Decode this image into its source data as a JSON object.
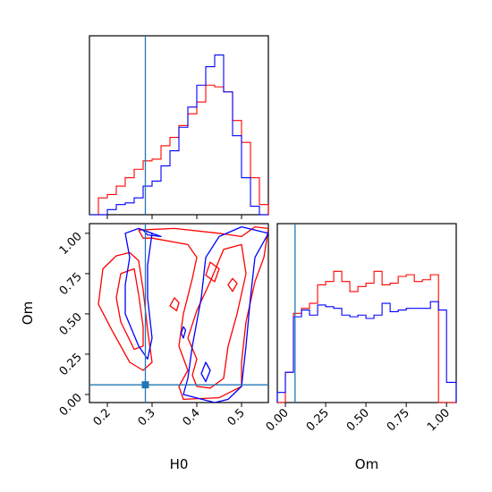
{
  "chart_data": [
    {
      "panel": "H0 marginal",
      "type": "histogram",
      "x_variable": "H0",
      "xlim": [
        0.16,
        0.56
      ],
      "y_ticks_shown": false,
      "bin_edges": [
        0.16,
        0.18,
        0.2,
        0.22,
        0.24,
        0.26,
        0.28,
        0.3,
        0.32,
        0.34,
        0.36,
        0.38,
        0.4,
        0.42,
        0.44,
        0.46,
        0.48,
        0.5,
        0.52,
        0.54,
        0.56
      ],
      "series": [
        {
          "color": "#ff0000",
          "values": [
            0.0,
            0.1,
            0.12,
            0.17,
            0.22,
            0.27,
            0.32,
            0.33,
            0.41,
            0.46,
            0.53,
            0.6,
            0.67,
            0.77,
            0.76,
            0.73,
            0.56,
            0.43,
            0.22,
            0.06
          ]
        },
        {
          "color": "#0000ff",
          "values": [
            0.0,
            0.0,
            0.03,
            0.06,
            0.07,
            0.1,
            0.17,
            0.2,
            0.29,
            0.38,
            0.52,
            0.64,
            0.77,
            0.88,
            0.95,
            0.73,
            0.47,
            0.22,
            0.05,
            0.0
          ]
        }
      ],
      "truth_line": {
        "x": 0.285,
        "color": "#1f77b4"
      }
    },
    {
      "panel": "H0 vs Om joint",
      "type": "contour",
      "x_variable": "H0",
      "y_variable": "Om",
      "xlabel": "H0",
      "ylabel": "Om",
      "xlim": [
        0.16,
        0.56
      ],
      "ylim": [
        -0.05,
        1.06
      ],
      "x_ticks": [
        "0.2",
        "0.3",
        "0.4",
        "0.5"
      ],
      "y_ticks": [
        "0.00",
        "0.25",
        "0.50",
        "0.75",
        "1.00"
      ],
      "series": [
        {
          "color": "#ff0000",
          "contours": [
            [
              [
                0.25,
                0.2
              ],
              [
                0.21,
                0.4
              ],
              [
                0.18,
                0.56
              ],
              [
                0.19,
                0.78
              ],
              [
                0.22,
                0.86
              ],
              [
                0.25,
                0.88
              ],
              [
                0.27,
                0.83
              ],
              [
                0.28,
                0.65
              ],
              [
                0.29,
                0.4
              ],
              [
                0.3,
                0.2
              ],
              [
                0.28,
                0.15
              ]
            ],
            [
              [
                0.26,
                0.28
              ],
              [
                0.23,
                0.45
              ],
              [
                0.22,
                0.6
              ],
              [
                0.23,
                0.75
              ],
              [
                0.26,
                0.78
              ],
              [
                0.27,
                0.62
              ],
              [
                0.28,
                0.42
              ],
              [
                0.28,
                0.3
              ]
            ],
            [
              [
                0.28,
                0.97
              ],
              [
                0.27,
                1.02
              ],
              [
                0.35,
                1.03
              ],
              [
                0.45,
                1.0
              ],
              [
                0.5,
                0.98
              ],
              [
                0.53,
                1.04
              ],
              [
                0.56,
                1.03
              ],
              [
                0.55,
                0.85
              ],
              [
                0.53,
                0.7
              ],
              [
                0.51,
                0.45
              ],
              [
                0.5,
                0.2
              ],
              [
                0.5,
                0.05
              ],
              [
                0.45,
                -0.02
              ],
              [
                0.37,
                -0.03
              ],
              [
                0.36,
                0.05
              ],
              [
                0.38,
                0.15
              ],
              [
                0.36,
                0.3
              ],
              [
                0.37,
                0.5
              ],
              [
                0.39,
                0.72
              ],
              [
                0.4,
                0.85
              ],
              [
                0.38,
                0.93
              ],
              [
                0.3,
                0.97
              ]
            ],
            [
              [
                0.4,
                0.05
              ],
              [
                0.39,
                0.12
              ],
              [
                0.4,
                0.22
              ],
              [
                0.38,
                0.35
              ],
              [
                0.4,
                0.52
              ],
              [
                0.43,
                0.7
              ],
              [
                0.46,
                0.9
              ],
              [
                0.5,
                0.93
              ],
              [
                0.51,
                0.75
              ],
              [
                0.49,
                0.5
              ],
              [
                0.47,
                0.3
              ],
              [
                0.46,
                0.1
              ],
              [
                0.43,
                0.04
              ]
            ],
            [
              [
                0.43,
                0.82
              ],
              [
                0.42,
                0.74
              ],
              [
                0.44,
                0.7
              ],
              [
                0.45,
                0.78
              ]
            ],
            [
              [
                0.48,
                0.72
              ],
              [
                0.47,
                0.68
              ],
              [
                0.48,
                0.64
              ],
              [
                0.49,
                0.69
              ]
            ],
            [
              [
                0.35,
                0.6
              ],
              [
                0.34,
                0.55
              ],
              [
                0.355,
                0.52
              ],
              [
                0.36,
                0.57
              ]
            ]
          ]
        },
        {
          "color": "#0000ff",
          "contours": [
            [
              [
                0.24,
                1.0
              ],
              [
                0.25,
                0.85
              ],
              [
                0.24,
                0.68
              ],
              [
                0.24,
                0.5
              ],
              [
                0.27,
                0.3
              ],
              [
                0.29,
                0.22
              ],
              [
                0.3,
                0.35
              ],
              [
                0.29,
                0.6
              ],
              [
                0.29,
                0.8
              ],
              [
                0.3,
                1.0
              ],
              [
                0.27,
                1.03
              ]
            ],
            [
              [
                0.28,
                1.02
              ],
              [
                0.29,
                0.99
              ],
              [
                0.32,
                0.98
              ]
            ],
            [
              [
                0.38,
                0.1
              ],
              [
                0.37,
                0.0
              ],
              [
                0.44,
                -0.05
              ],
              [
                0.47,
                -0.03
              ],
              [
                0.5,
                0.05
              ],
              [
                0.51,
                0.3
              ],
              [
                0.52,
                0.6
              ],
              [
                0.53,
                0.85
              ],
              [
                0.56,
                1.0
              ],
              [
                0.5,
                1.04
              ],
              [
                0.45,
                0.98
              ],
              [
                0.42,
                0.85
              ],
              [
                0.41,
                0.6
              ],
              [
                0.39,
                0.3
              ]
            ],
            [
              [
                0.42,
                0.2
              ],
              [
                0.41,
                0.13
              ],
              [
                0.42,
                0.08
              ],
              [
                0.43,
                0.15
              ]
            ],
            [
              [
                0.37,
                0.42
              ],
              [
                0.365,
                0.38
              ],
              [
                0.37,
                0.35
              ],
              [
                0.375,
                0.4
              ]
            ]
          ]
        }
      ],
      "truth_point": {
        "x": 0.285,
        "y": 0.06,
        "color": "#1f77b4"
      }
    },
    {
      "panel": "Om marginal",
      "type": "histogram",
      "x_variable": "Om",
      "xlabel": "Om",
      "xlim": [
        -0.05,
        1.06
      ],
      "x_ticks": [
        "0.00",
        "0.25",
        "0.50",
        "0.75",
        "1.00"
      ],
      "y_ticks_shown": false,
      "bin_edges": [
        -0.05,
        0.0,
        0.05,
        0.1,
        0.15,
        0.2,
        0.25,
        0.3,
        0.35,
        0.4,
        0.45,
        0.5,
        0.55,
        0.6,
        0.65,
        0.7,
        0.75,
        0.8,
        0.85,
        0.9,
        0.95,
        1.0,
        1.06
      ],
      "series": [
        {
          "color": "#ff0000",
          "values": [
            0.0,
            0.18,
            0.53,
            0.56,
            0.59,
            0.7,
            0.72,
            0.78,
            0.72,
            0.66,
            0.69,
            0.71,
            0.78,
            0.7,
            0.71,
            0.75,
            0.76,
            0.72,
            0.73,
            0.76,
            0.0,
            0.0
          ]
        },
        {
          "color": "#0000ff",
          "values": [
            0.06,
            0.18,
            0.51,
            0.55,
            0.52,
            0.58,
            0.57,
            0.56,
            0.52,
            0.51,
            0.52,
            0.5,
            0.52,
            0.59,
            0.54,
            0.55,
            0.56,
            0.56,
            0.56,
            0.6,
            0.55,
            0.12
          ]
        }
      ],
      "truth_line": {
        "x": 0.06,
        "color": "#1f77b4"
      }
    }
  ]
}
